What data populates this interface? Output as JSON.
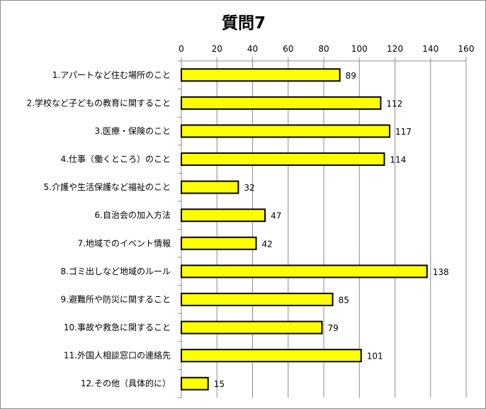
{
  "chart_data": {
    "type": "bar",
    "orientation": "horizontal",
    "title": "質問7",
    "xlabel": "",
    "ylabel": "",
    "xlim": [
      0,
      160
    ],
    "xticks": [
      0,
      20,
      40,
      60,
      80,
      100,
      120,
      140,
      160
    ],
    "xaxis_position": "top",
    "grid": true,
    "legend": "none",
    "bar_color": "#ffff00",
    "bar_edge_color": "#000000",
    "categories": [
      "1.アパートなど住む場所のこと",
      "2.学校など子どもの教育に関すること",
      "3.医療・保険のこと",
      "4.仕事（働くところ）のこと",
      "5.介護や生活保護など福祉のこと",
      "6.自治会の加入方法",
      "7.地域でのイベント情報",
      "8.ゴミ出しなど地域のルール",
      "9.避難所や防災に関すること",
      "10.事故や救急に関すること",
      "11.外国人相談窓口の連絡先",
      "12.その他（具体的に）"
    ],
    "values": [
      89,
      112,
      117,
      114,
      32,
      47,
      42,
      138,
      85,
      79,
      101,
      15
    ]
  }
}
